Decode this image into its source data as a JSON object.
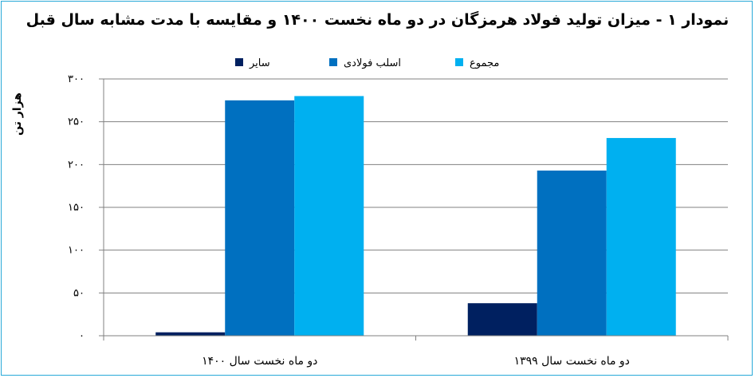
{
  "chart_data": {
    "type": "bar",
    "title": "نمودار ۱ - میزان تولید فولاد هرمزگان در دو ماه نخست ۱۴۰۰ و مقایسه با مدت مشابه سال قبل",
    "ylabel": "هزار تن",
    "xlabel": "",
    "ylim": [
      0,
      300
    ],
    "yticks": [
      "۰",
      "۵۰",
      "۱۰۰",
      "۱۵۰",
      "۲۰۰",
      "۲۵۰",
      "۳۰۰"
    ],
    "ytick_values": [
      0,
      50,
      100,
      150,
      200,
      250,
      300
    ],
    "categories": [
      "دو ماه نخست سال ۱۴۰۰",
      "دو ماه نخست سال ۱۳۹۹"
    ],
    "series": [
      {
        "name": "سایر",
        "color": "#002060",
        "values": [
          4,
          38
        ]
      },
      {
        "name": "اسلب فولادی",
        "color": "#0070c0",
        "values": [
          275,
          193
        ]
      },
      {
        "name": "مجموع",
        "color": "#00b0f0",
        "values": [
          280,
          231
        ]
      }
    ],
    "grid": true,
    "legend": "top"
  }
}
